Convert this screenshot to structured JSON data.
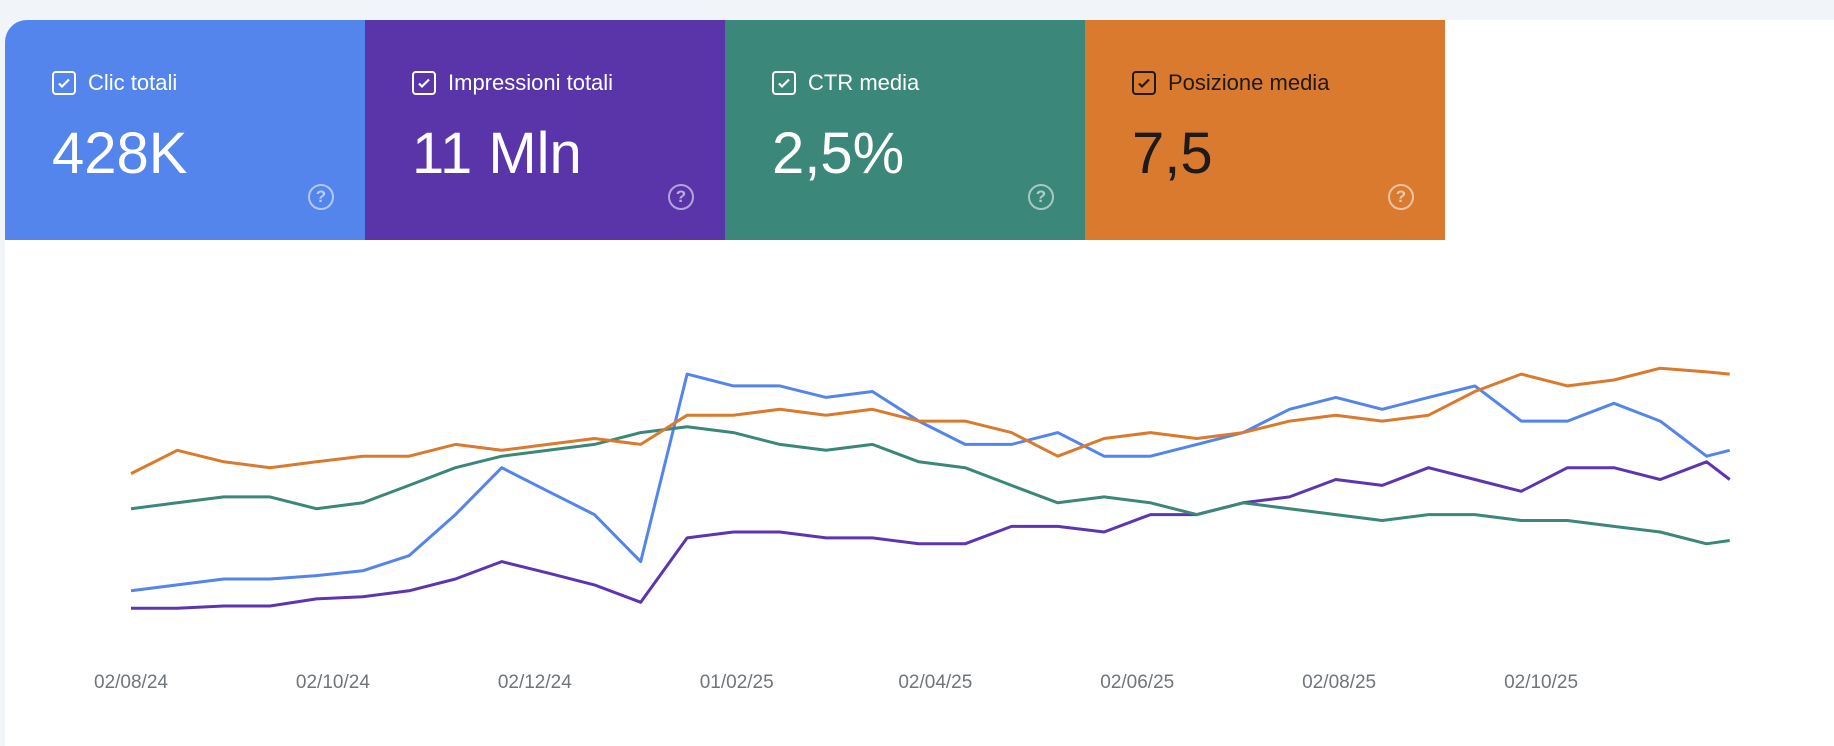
{
  "cards": [
    {
      "title": "Clic totali",
      "value": "428K",
      "color": "#5385ec",
      "checked": true,
      "icon": "help-icon"
    },
    {
      "title": "Impressioni totali",
      "value": "11 Mln",
      "color": "#5935a9",
      "checked": true,
      "icon": "help-icon"
    },
    {
      "title": "CTR media",
      "value": "2,5%",
      "color": "#3b877a",
      "checked": true,
      "icon": "help-icon"
    },
    {
      "title": "Posizione media",
      "value": "7,5",
      "color": "#d97a2f",
      "checked": true,
      "icon": "help-icon"
    }
  ],
  "help_glyph": "?",
  "chart_data": {
    "type": "line",
    "grid": false,
    "y_axis_shown": false,
    "y_scale_note_relative": [
      0,
      100
    ],
    "x_tick_labels": [
      "02/08/24",
      "02/10/24",
      "02/12/24",
      "01/02/25",
      "02/04/25",
      "02/06/25",
      "02/08/25",
      "02/10/25"
    ],
    "x_tick_dates": [
      "2024-08-02",
      "2024-10-02",
      "2024-12-02",
      "2025-02-01",
      "2025-04-02",
      "2025-06-02",
      "2025-08-02",
      "2025-10-02"
    ],
    "x": [
      "2024-08-02",
      "2024-08-16",
      "2024-08-30",
      "2024-09-13",
      "2024-09-27",
      "2024-10-11",
      "2024-10-25",
      "2024-11-08",
      "2024-11-22",
      "2024-12-06",
      "2024-12-20",
      "2025-01-03",
      "2025-01-17",
      "2025-01-31",
      "2025-02-14",
      "2025-02-28",
      "2025-03-14",
      "2025-03-28",
      "2025-04-11",
      "2025-04-25",
      "2025-05-09",
      "2025-05-23",
      "2025-06-06",
      "2025-06-20",
      "2025-07-04",
      "2025-07-18",
      "2025-08-01",
      "2025-08-15",
      "2025-08-29",
      "2025-09-12",
      "2025-09-26",
      "2025-10-10",
      "2025-10-24",
      "2025-11-07",
      "2025-11-21",
      "2025-11-28"
    ],
    "series": [
      {
        "name": "Clic totali",
        "color": "#5385ec",
        "values": [
          10.4,
          12.5,
          14.6,
          14.6,
          15.8,
          17.5,
          22.9,
          37.5,
          54.2,
          45.8,
          37.5,
          20.8,
          87.5,
          83.3,
          83.3,
          79.2,
          81.3,
          70.8,
          62.5,
          62.5,
          66.7,
          58.3,
          58.3,
          62.5,
          66.7,
          75,
          79.2,
          75,
          79.2,
          83.3,
          70.8,
          70.8,
          77.1,
          70.8,
          58.3,
          60.4
        ]
      },
      {
        "name": "Impressioni totali",
        "color": "#5e35b1",
        "values": [
          4.2,
          4.2,
          5,
          5,
          7.5,
          8.3,
          10.4,
          14.6,
          20.8,
          16.7,
          12.5,
          6.3,
          29.2,
          31.3,
          31.3,
          29.2,
          29.2,
          27.1,
          27.1,
          33.3,
          33.3,
          31.3,
          37.5,
          37.5,
          41.7,
          43.8,
          50,
          47.9,
          54.2,
          50,
          45.8,
          54.2,
          54.2,
          50,
          56.3,
          50
        ]
      },
      {
        "name": "CTR media",
        "color": "#3b877a",
        "values": [
          39.6,
          41.7,
          43.8,
          43.8,
          39.6,
          41.7,
          47.9,
          54.2,
          58.3,
          60.4,
          62.5,
          66.7,
          68.8,
          66.7,
          62.5,
          60.4,
          62.5,
          56.3,
          54.2,
          47.9,
          41.7,
          43.8,
          41.7,
          37.5,
          41.7,
          39.6,
          37.5,
          35.4,
          37.5,
          37.5,
          35.4,
          35.4,
          33.3,
          31.3,
          27.1,
          28.3
        ]
      },
      {
        "name": "Posizione media",
        "color": "#d97a2f",
        "values": [
          52.1,
          60.4,
          56.3,
          54.2,
          56.3,
          58.3,
          58.3,
          62.5,
          60.4,
          62.5,
          64.6,
          62.5,
          72.9,
          72.9,
          75,
          72.9,
          75,
          70.8,
          70.8,
          66.7,
          58.3,
          64.6,
          66.7,
          64.6,
          66.7,
          70.8,
          72.9,
          70.8,
          72.9,
          81.3,
          87.5,
          83.3,
          85.4,
          89.6,
          88.3,
          87.5
        ]
      }
    ]
  }
}
